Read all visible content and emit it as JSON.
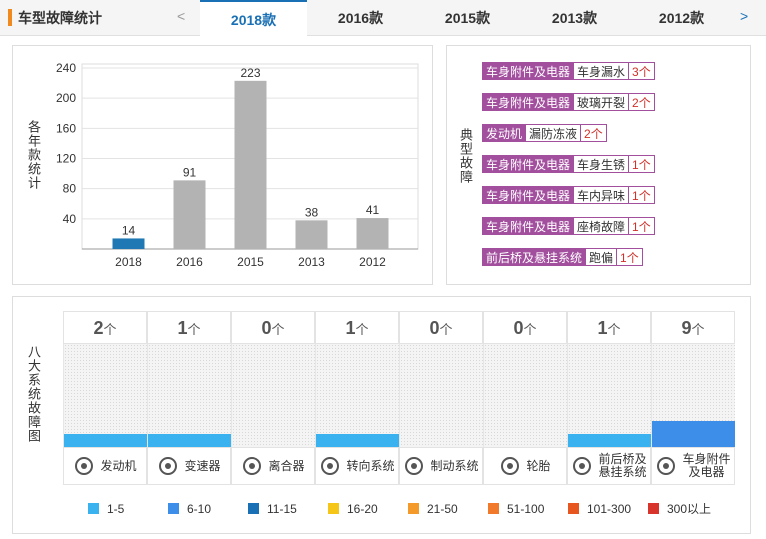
{
  "tabs": {
    "title": "车型故障统计",
    "prev": "<",
    "next": ">",
    "items": [
      "2018款",
      "2016款",
      "2015款",
      "2013款",
      "2012款"
    ]
  },
  "chart_data": {
    "type": "bar",
    "ylabel": "各年款统计",
    "categories": [
      "2018",
      "2016",
      "2015",
      "2013",
      "2012"
    ],
    "values": [
      14,
      91,
      223,
      38,
      41
    ],
    "colors": [
      "#1f78b4",
      "#b3b3b3",
      "#b3b3b3",
      "#b3b3b3",
      "#b3b3b3"
    ],
    "ylim": [
      0,
      240
    ],
    "yticks": [
      40,
      80,
      120,
      160,
      200,
      240
    ],
    "grid": true
  },
  "faults": {
    "label": "典型故障",
    "items": [
      {
        "system": "车身附件及电器",
        "fault": "车身漏水",
        "count": "3个"
      },
      {
        "system": "车身附件及电器",
        "fault": "玻璃开裂",
        "count": "2个"
      },
      {
        "system": "发动机",
        "fault": "漏防冻液",
        "count": "2个"
      },
      {
        "system": "车身附件及电器",
        "fault": "车身生锈",
        "count": "1个"
      },
      {
        "system": "车身附件及电器",
        "fault": "车内异味",
        "count": "1个"
      },
      {
        "system": "车身附件及电器",
        "fault": "座椅故障",
        "count": "1个"
      },
      {
        "system": "前后桥及悬挂系统",
        "fault": "跑偏",
        "count": "1个"
      }
    ]
  },
  "systems": {
    "label": "八大系统故障图",
    "unit": "个",
    "items": [
      {
        "name": [
          "发动机"
        ],
        "count": 2
      },
      {
        "name": [
          "变速器"
        ],
        "count": 1
      },
      {
        "name": [
          "离合器"
        ],
        "count": 0
      },
      {
        "name": [
          "转向系统"
        ],
        "count": 1
      },
      {
        "name": [
          "制动系统"
        ],
        "count": 0
      },
      {
        "name": [
          "轮胎"
        ],
        "count": 0
      },
      {
        "name": [
          "前后桥及",
          "悬挂系统"
        ],
        "count": 1
      },
      {
        "name": [
          "车身附件",
          "及电器"
        ],
        "count": 9
      }
    ],
    "legend": [
      {
        "label": "1-5",
        "color": "#3ab2f0"
      },
      {
        "label": "6-10",
        "color": "#3d8ee8"
      },
      {
        "label": "11-15",
        "color": "#1a70b5"
      },
      {
        "label": "16-20",
        "color": "#f5c518"
      },
      {
        "label": "21-50",
        "color": "#f39a2b"
      },
      {
        "label": "51-100",
        "color": "#f07a2a"
      },
      {
        "label": "101-300",
        "color": "#e8561f"
      },
      {
        "label": "300以上",
        "color": "#d9342b"
      }
    ]
  }
}
